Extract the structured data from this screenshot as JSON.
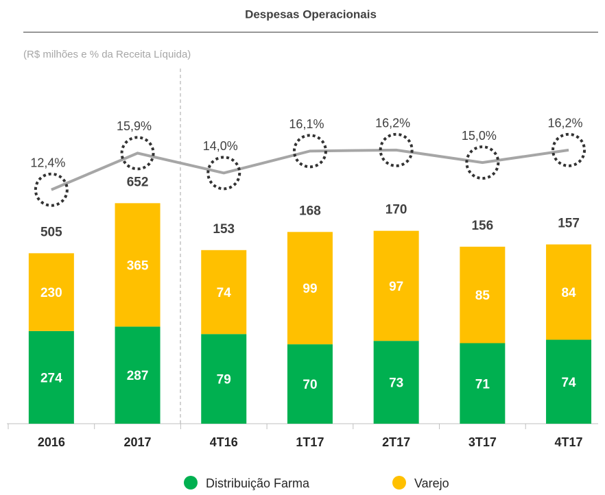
{
  "chart_data": [
    {
      "type": "bar",
      "title": "Despesas Operacionais",
      "subtitle": "(R$ milhões e % da Receita Líquida)",
      "categories": [
        "2016",
        "2017"
      ],
      "ylim": [
        0,
        1050
      ],
      "y2lim": [
        -10,
        24
      ],
      "stacked": true,
      "series": [
        {
          "name": "Distribuição Farma",
          "color": "#00b050",
          "values": [
            274,
            287
          ]
        },
        {
          "name": "Varejo",
          "color": "#ffc000",
          "values": [
            230,
            365
          ]
        }
      ],
      "totals": [
        505,
        652
      ],
      "line": {
        "color": "#a6a6a6",
        "axis": "y2",
        "values": [
          12.4,
          15.9
        ],
        "value_labels": [
          "12,4%",
          "15,9%"
        ]
      }
    },
    {
      "type": "bar",
      "categories": [
        "4T16",
        "1T17",
        "2T17",
        "3T17",
        "4T17"
      ],
      "ylim": [
        0,
        313
      ],
      "y2lim": [
        -10,
        24
      ],
      "stacked": true,
      "series": [
        {
          "color": "#00b050",
          "values": [
            79,
            70,
            73,
            71,
            74
          ]
        },
        {
          "color": "#ffc000",
          "values": [
            74,
            99,
            97,
            85,
            84
          ]
        }
      ],
      "totals": [
        153,
        168,
        170,
        156,
        157
      ],
      "line": {
        "color": "#a6a6a6",
        "axis": "y2",
        "values": [
          14.0,
          16.1,
          16.2,
          15.0,
          16.2
        ],
        "value_labels": [
          "14,0%",
          "16,1%",
          "16,2%",
          "15,0%",
          "16,2%"
        ]
      }
    }
  ]
}
